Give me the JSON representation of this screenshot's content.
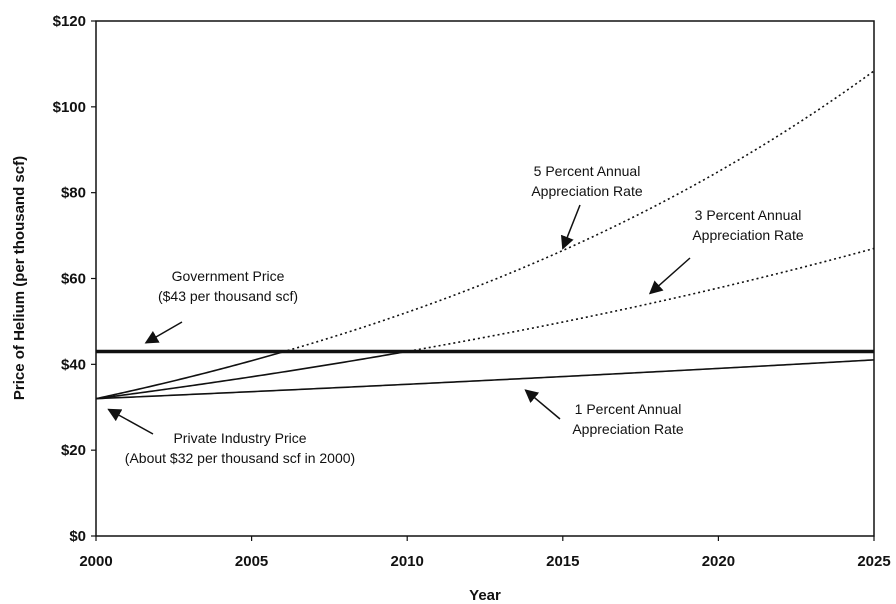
{
  "chart_data": {
    "type": "line",
    "xlabel": "Year",
    "ylabel": "Price of Helium (per thousand scf)",
    "xlim": [
      2000,
      2025
    ],
    "ylim": [
      0,
      120
    ],
    "x_ticks": [
      "2000",
      "2005",
      "2010",
      "2015",
      "2020",
      "2025"
    ],
    "y_ticks": [
      "$0",
      "$20",
      "$40",
      "$60",
      "$80",
      "$100",
      "$120"
    ],
    "grid": false,
    "legend": "none",
    "series": [
      {
        "name": "Government Price",
        "style": "solid-thick",
        "x": [
          2000,
          2025
        ],
        "y": [
          43,
          43
        ]
      },
      {
        "name": "1 Percent Annual Appreciation Rate",
        "style": "solid",
        "base_year": 2000,
        "base_price": 32,
        "annual_rate": 0.01,
        "x": [
          2000,
          2005,
          2010,
          2015,
          2020,
          2025
        ],
        "y": [
          32.0,
          33.6,
          35.3,
          37.2,
          39.0,
          41.0
        ]
      },
      {
        "name": "3 Percent Annual Appreciation Rate",
        "style": "solid-then-dotted",
        "base_year": 2000,
        "base_price": 32,
        "annual_rate": 0.03,
        "x": [
          2000,
          2005,
          2010,
          2015,
          2020,
          2025
        ],
        "y": [
          32.0,
          37.1,
          43.0,
          49.9,
          57.8,
          67.0
        ]
      },
      {
        "name": "5 Percent Annual Appreciation Rate",
        "style": "solid-then-dotted",
        "base_year": 2000,
        "base_price": 32,
        "annual_rate": 0.05,
        "x": [
          2000,
          2005,
          2010,
          2015,
          2020,
          2025
        ],
        "y": [
          32.0,
          40.8,
          52.1,
          66.5,
          84.9,
          108.4
        ]
      }
    ],
    "annotations": [
      {
        "lines": [
          "5 Percent Annual",
          "Appreciation Rate"
        ],
        "arrow_to": [
          2015.0,
          67.0
        ]
      },
      {
        "lines": [
          "3 Percent Annual",
          "Appreciation Rate"
        ],
        "arrow_to": [
          2017.8,
          56.5
        ]
      },
      {
        "lines": [
          "Government Price",
          "($43 per thousand scf)"
        ],
        "arrow_to": [
          2001.6,
          45.0
        ]
      },
      {
        "lines": [
          "Private Industry Price",
          "(About $32 per thousand scf in 2000)"
        ],
        "arrow_to": [
          2000.4,
          29.5
        ]
      },
      {
        "lines": [
          "1 Percent Annual",
          "Appreciation Rate"
        ],
        "arrow_to": [
          2013.8,
          34.0
        ]
      }
    ]
  }
}
